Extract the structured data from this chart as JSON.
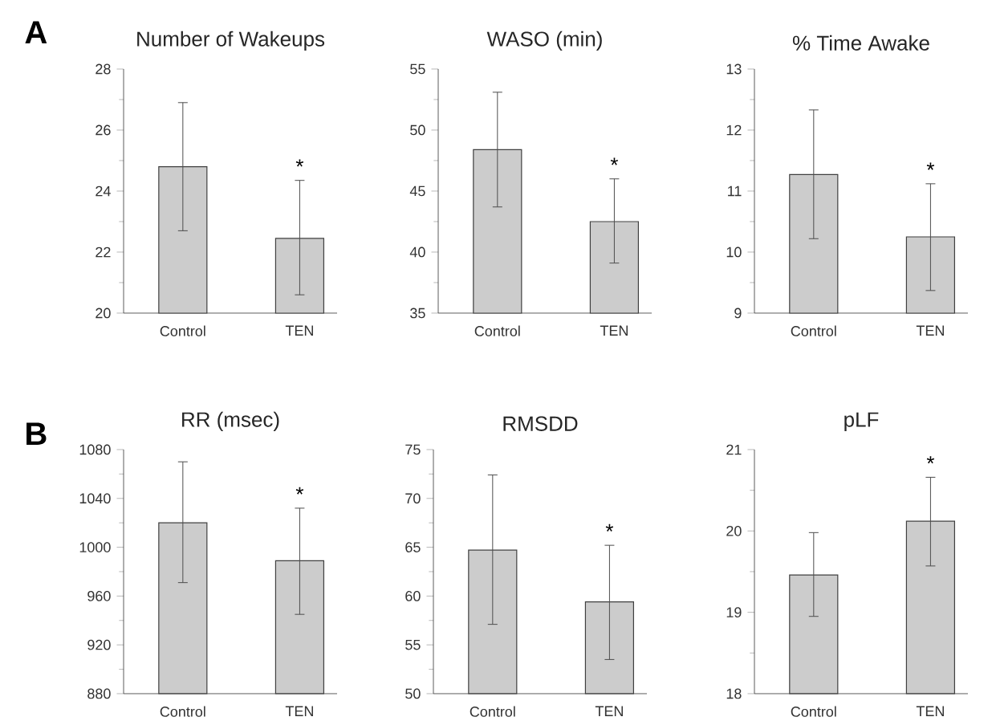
{
  "chart_data": [
    {
      "type": "bar",
      "title": "Number of Wakeups",
      "categories": [
        "Control",
        "TEN"
      ],
      "values": [
        24.8,
        22.45
      ],
      "errors": [
        [
          22.7,
          26.9
        ],
        [
          20.6,
          24.35
        ]
      ],
      "color": "#cccccc",
      "ylim": [
        20,
        28
      ],
      "yticks": [
        20,
        22,
        24,
        26,
        28
      ],
      "annotations": [
        "A",
        {
          "text": "*",
          "x": "TEN",
          "y": 24.35
        }
      ]
    },
    {
      "type": "bar",
      "title": "WASO (min)",
      "categories": [
        "Control",
        "TEN"
      ],
      "values": [
        48.4,
        42.5
      ],
      "errors": [
        [
          43.7,
          53.1
        ],
        [
          39.1,
          46.0
        ]
      ],
      "color": "#cccccc",
      "ylim": [
        35,
        55
      ],
      "yticks": [
        35,
        40,
        45,
        50,
        55
      ],
      "annotations": [
        {
          "text": "*",
          "x": "TEN",
          "y": 46.0
        }
      ]
    },
    {
      "type": "bar",
      "title": "% Time Awake",
      "categories": [
        "Control",
        "TEN"
      ],
      "values": [
        11.27,
        10.25
      ],
      "errors": [
        [
          10.22,
          12.33
        ],
        [
          9.37,
          11.12
        ]
      ],
      "color": "#cccccc",
      "ylim": [
        9,
        13
      ],
      "yticks": [
        9,
        10,
        11,
        12,
        13
      ],
      "annotations": [
        {
          "text": "*",
          "x": "TEN",
          "y": 11.12
        }
      ]
    },
    {
      "type": "bar",
      "title": "RR (msec)",
      "categories": [
        "Control",
        "TEN"
      ],
      "values": [
        1020,
        989
      ],
      "errors": [
        [
          971,
          1070
        ],
        [
          945,
          1032
        ]
      ],
      "color": "#cccccc",
      "ylim": [
        880,
        1080
      ],
      "yticks": [
        880,
        920,
        960,
        1000,
        1040,
        1080
      ],
      "annotations": [
        "B",
        {
          "text": "*",
          "x": "TEN",
          "y": 1032
        }
      ]
    },
    {
      "type": "bar",
      "title": "RMSDD",
      "categories": [
        "Control",
        "TEN"
      ],
      "values": [
        64.7,
        59.4
      ],
      "errors": [
        [
          57.1,
          72.4
        ],
        [
          53.5,
          65.2
        ]
      ],
      "color": "#cccccc",
      "ylim": [
        50,
        75
      ],
      "yticks": [
        50,
        55,
        60,
        65,
        70,
        75
      ],
      "annotations": [
        {
          "text": "*",
          "x": "TEN",
          "y": 65.2
        }
      ]
    },
    {
      "type": "bar",
      "title": "pLF",
      "categories": [
        "Control",
        "TEN"
      ],
      "values": [
        19.46,
        20.12
      ],
      "errors": [
        [
          18.95,
          19.98
        ],
        [
          19.57,
          20.66
        ]
      ],
      "color": "#cccccc",
      "ylim": [
        18,
        21
      ],
      "yticks": [
        18,
        19,
        20,
        21
      ],
      "annotations": [
        {
          "text": "*",
          "x": "TEN",
          "y": 20.66
        }
      ]
    }
  ]
}
